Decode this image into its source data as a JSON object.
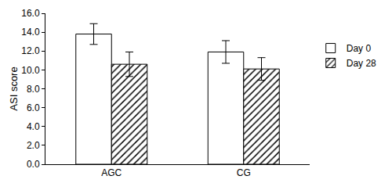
{
  "chart_data": {
    "type": "bar",
    "y_label": "ASI score",
    "categories": [
      "AGC",
      "CG"
    ],
    "series": [
      {
        "name": "Day 0",
        "color": "#ffffff",
        "marker": "solid",
        "values": [
          13.8,
          11.9
        ],
        "errors": [
          1.1,
          1.2
        ]
      },
      {
        "name": "Day 28",
        "color": "#ffffff",
        "marker": "hatched",
        "values": [
          10.6,
          10.1
        ],
        "errors": [
          1.3,
          1.2
        ]
      }
    ],
    "ylim": [
      0,
      16
    ],
    "yticks": [
      {
        "value": 0,
        "label": "0.0"
      },
      {
        "value": 2,
        "label": "2.0"
      },
      {
        "value": 4,
        "label": "4.0"
      },
      {
        "value": 6,
        "label": "6.0"
      },
      {
        "value": 8,
        "label": "8.0"
      },
      {
        "value": 10,
        "label": "10.0"
      },
      {
        "value": 12,
        "label": "12.0"
      },
      {
        "value": 14,
        "label": "14.0"
      },
      {
        "value": 16,
        "label": "16.0"
      }
    ],
    "grid": false,
    "legend": "right"
  }
}
